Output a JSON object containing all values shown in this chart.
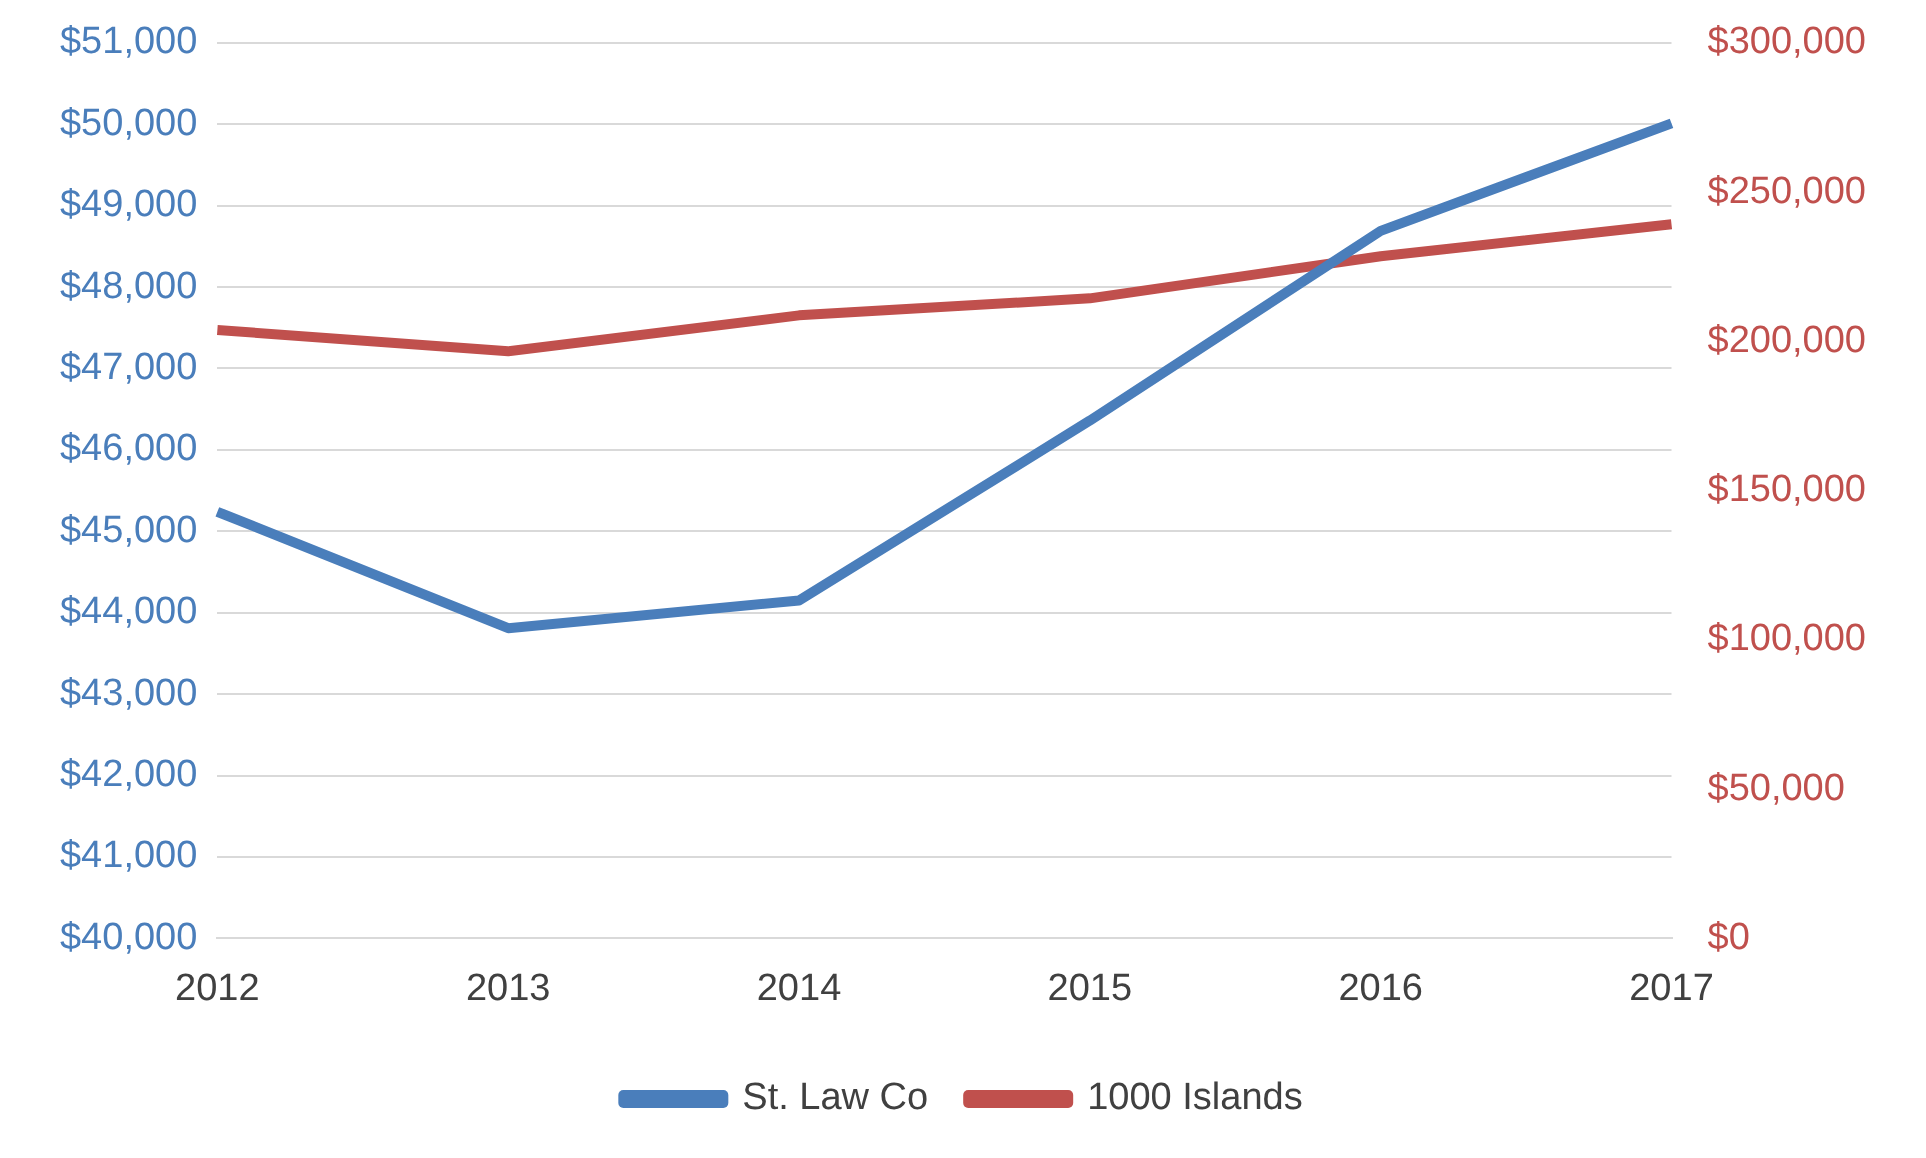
{
  "chart_data": {
    "type": "line",
    "categories": [
      "2012",
      "2013",
      "2014",
      "2015",
      "2016",
      "2017"
    ],
    "series": [
      {
        "name": "St. Law Co",
        "color": "#4a7ebb",
        "values": [
          45240,
          43810,
          44150,
          46360,
          48690,
          50010
        ]
      },
      {
        "name": "1000 Islands",
        "color": "#c0504d",
        "axis": "y2",
        "values": [
          203800,
          196700,
          208700,
          214400,
          228500,
          239200
        ]
      }
    ],
    "ylim": [
      40000,
      51000
    ],
    "yticks": [
      {
        "value": 40000,
        "label": "$40,000"
      },
      {
        "value": 41000,
        "label": "$41,000"
      },
      {
        "value": 42000,
        "label": "$42,000"
      },
      {
        "value": 43000,
        "label": "$43,000"
      },
      {
        "value": 44000,
        "label": "$44,000"
      },
      {
        "value": 45000,
        "label": "$45,000"
      },
      {
        "value": 46000,
        "label": "$46,000"
      },
      {
        "value": 47000,
        "label": "$47,000"
      },
      {
        "value": 48000,
        "label": "$48,000"
      },
      {
        "value": 49000,
        "label": "$49,000"
      },
      {
        "value": 50000,
        "label": "$50,000"
      },
      {
        "value": 51000,
        "label": "$51,000"
      }
    ],
    "y2lim": [
      0,
      300000
    ],
    "y2ticks": [
      {
        "value": 0,
        "label": "$0"
      },
      {
        "value": 50000,
        "label": "$50,000"
      },
      {
        "value": 100000,
        "label": "$100,000"
      },
      {
        "value": 150000,
        "label": "$150,000"
      },
      {
        "value": 200000,
        "label": "$200,000"
      },
      {
        "value": 250000,
        "label": "$250,000"
      },
      {
        "value": 300000,
        "label": "$300,000"
      }
    ],
    "grid": "y",
    "legend": "bottom",
    "marker": "none",
    "line_style": "solid"
  }
}
